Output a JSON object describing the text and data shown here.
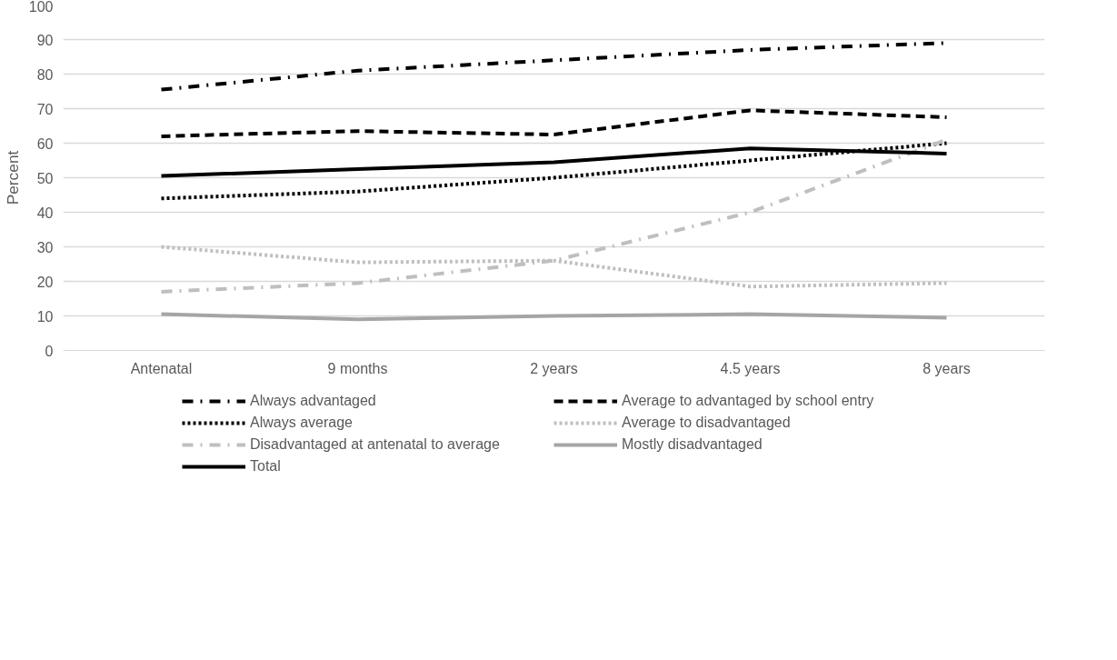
{
  "chart_data": {
    "type": "line",
    "ylabel": "Percent",
    "categories": [
      "Antenatal",
      "9 months",
      "2 years",
      "4.5 years",
      "8 years"
    ],
    "ylim": [
      0,
      100
    ],
    "yticks": [
      0,
      10,
      20,
      30,
      40,
      50,
      60,
      70,
      80,
      90,
      100
    ],
    "grid": "y",
    "legend": "bottom",
    "marker": "none",
    "series": [
      {
        "name": "Always advantaged",
        "color": "#000000",
        "line_style": "dashdot",
        "values": [
          75.5,
          81,
          84,
          87,
          89
        ]
      },
      {
        "name": "Average to advantaged by school entry",
        "color": "#000000",
        "line_style": "dashed",
        "values": [
          62,
          63.5,
          62.5,
          69.5,
          67.5
        ]
      },
      {
        "name": "Always average",
        "color": "#000000",
        "line_style": "dotted",
        "values": [
          44,
          46,
          50,
          55,
          60
        ]
      },
      {
        "name": "Average to disadvantaged",
        "color": "#bfbfbf",
        "line_style": "dotted",
        "values": [
          30,
          25.5,
          26,
          18.5,
          19.5
        ]
      },
      {
        "name": "Disadvantaged at antenatal to average",
        "color": "#bfbfbf",
        "line_style": "dashdot",
        "values": [
          17,
          19.5,
          26,
          40,
          61
        ]
      },
      {
        "name": "Mostly disadvantaged",
        "color": "#a5a5a5",
        "line_style": "solid",
        "values": [
          10.5,
          9,
          10,
          10.5,
          9.5
        ]
      },
      {
        "name": "Total",
        "color": "#000000",
        "line_style": "solid",
        "values": [
          50.5,
          52.5,
          54.5,
          58.5,
          57
        ]
      }
    ]
  }
}
